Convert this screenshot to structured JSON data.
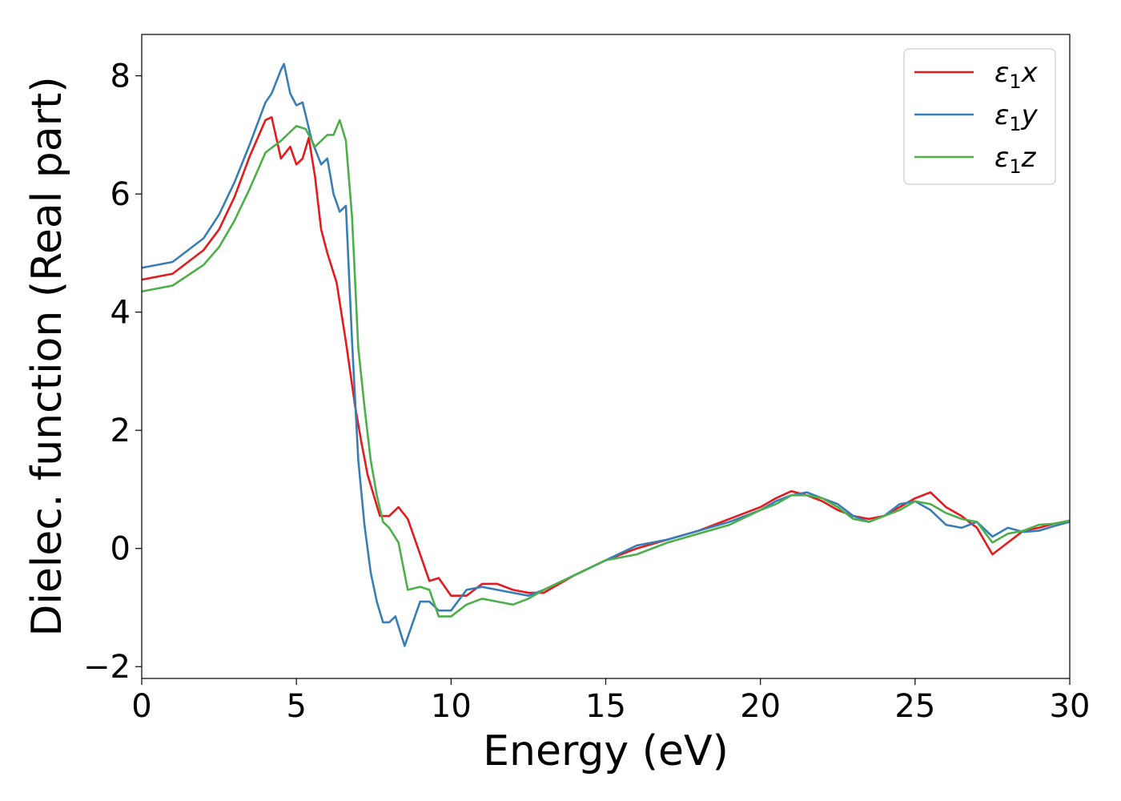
{
  "chart_data": {
    "type": "line",
    "title": "",
    "xlabel": "Energy (eV)",
    "ylabel": "Dielec. function (Real part)",
    "xlim": [
      0,
      30
    ],
    "ylim": [
      -2.2,
      8.7
    ],
    "xticks": [
      0,
      5,
      10,
      15,
      20,
      25,
      30
    ],
    "xtick_labels": [
      "0",
      "5",
      "10",
      "15",
      "20",
      "25",
      "30"
    ],
    "yticks": [
      -2,
      0,
      2,
      4,
      6,
      8
    ],
    "ytick_labels": [
      "−2",
      "0",
      "2",
      "4",
      "6",
      "8"
    ],
    "grid": false,
    "legend_position": "top-right",
    "series": [
      {
        "name": "ε1x",
        "legend": {
          "symbol": "ε",
          "sub": "1",
          "var": "x"
        },
        "color": "#e41a1c",
        "x": [
          0,
          1,
          2,
          2.5,
          3,
          3.5,
          4,
          4.2,
          4.5,
          4.8,
          5,
          5.2,
          5.4,
          5.6,
          5.8,
          6,
          6.3,
          6.6,
          6.9,
          7.1,
          7.3,
          7.5,
          7.7,
          8,
          8.3,
          8.6,
          9,
          9.3,
          9.6,
          10,
          10.5,
          11,
          11.5,
          12,
          12.5,
          13,
          14,
          15,
          16,
          17,
          18,
          19,
          20,
          20.5,
          21,
          21.5,
          22,
          22.5,
          23,
          23.5,
          24,
          24.5,
          25,
          25.5,
          26,
          26.5,
          27,
          27.5,
          28,
          28.5,
          29,
          29.5,
          30
        ],
        "y": [
          4.55,
          4.65,
          5.05,
          5.4,
          5.95,
          6.65,
          7.25,
          7.3,
          6.6,
          6.8,
          6.5,
          6.6,
          6.95,
          6.3,
          5.4,
          5.0,
          4.5,
          3.5,
          2.4,
          1.8,
          1.25,
          0.9,
          0.55,
          0.55,
          0.7,
          0.5,
          -0.1,
          -0.55,
          -0.5,
          -0.8,
          -0.8,
          -0.6,
          -0.6,
          -0.7,
          -0.75,
          -0.75,
          -0.45,
          -0.2,
          0.0,
          0.15,
          0.3,
          0.5,
          0.7,
          0.85,
          0.97,
          0.9,
          0.8,
          0.65,
          0.55,
          0.5,
          0.55,
          0.7,
          0.85,
          0.95,
          0.7,
          0.55,
          0.35,
          -0.1,
          0.1,
          0.3,
          0.35,
          0.42,
          0.47
        ]
      },
      {
        "name": "ε1y",
        "legend": {
          "symbol": "ε",
          "sub": "1",
          "var": "y"
        },
        "color": "#377eb8",
        "x": [
          0,
          1,
          2,
          2.5,
          3,
          3.5,
          4,
          4.2,
          4.5,
          4.6,
          4.8,
          5,
          5.2,
          5.5,
          5.8,
          6,
          6.2,
          6.4,
          6.6,
          6.8,
          7,
          7.2,
          7.4,
          7.6,
          7.8,
          8,
          8.2,
          8.5,
          8.8,
          9,
          9.3,
          9.6,
          10,
          10.5,
          11,
          11.5,
          12,
          12.5,
          13,
          14,
          15,
          16,
          17,
          18,
          19,
          20,
          20.5,
          21,
          21.5,
          22,
          22.5,
          23,
          23.5,
          24,
          24.5,
          25,
          25.5,
          26,
          26.5,
          27,
          27.5,
          28,
          28.5,
          29,
          29.5,
          30
        ],
        "y": [
          4.75,
          4.85,
          5.25,
          5.65,
          6.2,
          6.85,
          7.55,
          7.7,
          8.1,
          8.2,
          7.7,
          7.5,
          7.55,
          6.9,
          6.5,
          6.6,
          6.0,
          5.7,
          5.8,
          3.5,
          1.5,
          0.4,
          -0.4,
          -0.9,
          -1.25,
          -1.25,
          -1.15,
          -1.65,
          -1.2,
          -0.9,
          -0.9,
          -1.05,
          -1.05,
          -0.7,
          -0.65,
          -0.7,
          -0.75,
          -0.8,
          -0.7,
          -0.45,
          -0.2,
          0.05,
          0.15,
          0.3,
          0.45,
          0.65,
          0.8,
          0.9,
          0.95,
          0.85,
          0.75,
          0.55,
          0.45,
          0.55,
          0.75,
          0.8,
          0.65,
          0.4,
          0.35,
          0.45,
          0.2,
          0.35,
          0.28,
          0.3,
          0.38,
          0.45
        ]
      },
      {
        "name": "ε1z",
        "legend": {
          "symbol": "ε",
          "sub": "1",
          "var": "z"
        },
        "color": "#4daf4a",
        "x": [
          0,
          1,
          2,
          2.5,
          3,
          3.5,
          4,
          4.5,
          5,
          5.3,
          5.6,
          5.8,
          6,
          6.2,
          6.4,
          6.6,
          6.8,
          7,
          7.2,
          7.4,
          7.6,
          7.8,
          8,
          8.3,
          8.6,
          9,
          9.3,
          9.6,
          10,
          10.5,
          11,
          11.5,
          12,
          12.5,
          13,
          14,
          15,
          16,
          17,
          18,
          19,
          20,
          20.5,
          21,
          21.5,
          22,
          22.5,
          23,
          23.5,
          24,
          24.5,
          25,
          25.5,
          26,
          26.5,
          27,
          27.5,
          28,
          28.5,
          29,
          29.5,
          30
        ],
        "y": [
          4.35,
          4.45,
          4.8,
          5.1,
          5.55,
          6.1,
          6.7,
          6.9,
          7.15,
          7.1,
          6.8,
          6.9,
          7.0,
          7.0,
          7.25,
          6.9,
          5.6,
          3.4,
          2.4,
          1.5,
          0.9,
          0.45,
          0.35,
          0.1,
          -0.7,
          -0.65,
          -0.7,
          -1.15,
          -1.15,
          -0.95,
          -0.85,
          -0.9,
          -0.95,
          -0.85,
          -0.7,
          -0.45,
          -0.2,
          -0.1,
          0.1,
          0.25,
          0.4,
          0.65,
          0.75,
          0.9,
          0.9,
          0.85,
          0.7,
          0.5,
          0.45,
          0.55,
          0.65,
          0.8,
          0.75,
          0.6,
          0.5,
          0.45,
          0.1,
          0.25,
          0.3,
          0.4,
          0.42,
          0.47
        ]
      }
    ]
  }
}
